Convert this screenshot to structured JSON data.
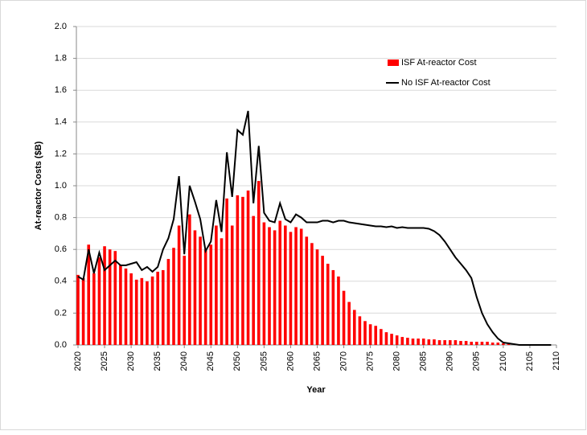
{
  "chart_data": {
    "type": "bar",
    "y_label": "At-reactor Costs ($B)",
    "x_label": "Year",
    "x": [
      2020,
      2021,
      2022,
      2023,
      2024,
      2025,
      2026,
      2027,
      2028,
      2029,
      2030,
      2031,
      2032,
      2033,
      2034,
      2035,
      2036,
      2037,
      2038,
      2039,
      2040,
      2041,
      2042,
      2043,
      2044,
      2045,
      2046,
      2047,
      2048,
      2049,
      2050,
      2051,
      2052,
      2053,
      2054,
      2055,
      2056,
      2057,
      2058,
      2059,
      2060,
      2061,
      2062,
      2063,
      2064,
      2065,
      2066,
      2067,
      2068,
      2069,
      2070,
      2071,
      2072,
      2073,
      2074,
      2075,
      2076,
      2077,
      2078,
      2079,
      2080,
      2081,
      2082,
      2083,
      2084,
      2085,
      2086,
      2087,
      2088,
      2089,
      2090,
      2091,
      2092,
      2093,
      2094,
      2095,
      2096,
      2097,
      2098,
      2099,
      2100,
      2101,
      2102,
      2103,
      2104,
      2105,
      2106,
      2107,
      2108,
      2109
    ],
    "series": [
      {
        "name": "ISF At-reactor Cost",
        "type": "bar",
        "color": "#ff0000",
        "values": [
          0.44,
          0.42,
          0.63,
          0.45,
          0.55,
          0.62,
          0.6,
          0.59,
          0.5,
          0.48,
          0.45,
          0.41,
          0.42,
          0.4,
          0.43,
          0.46,
          0.47,
          0.54,
          0.61,
          0.75,
          0.56,
          0.82,
          0.72,
          0.68,
          0.6,
          0.63,
          0.75,
          0.67,
          0.92,
          0.75,
          0.94,
          0.93,
          0.97,
          0.81,
          1.03,
          0.77,
          0.74,
          0.72,
          0.78,
          0.75,
          0.71,
          0.74,
          0.73,
          0.68,
          0.64,
          0.6,
          0.56,
          0.51,
          0.47,
          0.43,
          0.34,
          0.27,
          0.22,
          0.18,
          0.15,
          0.13,
          0.12,
          0.1,
          0.08,
          0.07,
          0.06,
          0.05,
          0.045,
          0.04,
          0.04,
          0.04,
          0.035,
          0.035,
          0.03,
          0.03,
          0.03,
          0.03,
          0.025,
          0.025,
          0.02,
          0.02,
          0.02,
          0.02,
          0.015,
          0.015,
          0.01,
          0.005,
          0,
          0,
          0,
          0,
          0,
          0,
          0,
          0
        ]
      },
      {
        "name": "No ISF At-reactor Cost",
        "type": "line",
        "color": "#000000",
        "values": [
          0.43,
          0.41,
          0.6,
          0.45,
          0.58,
          0.47,
          0.5,
          0.53,
          0.5,
          0.5,
          0.51,
          0.52,
          0.47,
          0.49,
          0.46,
          0.49,
          0.6,
          0.67,
          0.79,
          1.06,
          0.57,
          1.0,
          0.9,
          0.79,
          0.59,
          0.65,
          0.91,
          0.71,
          1.21,
          0.93,
          1.35,
          1.32,
          1.47,
          0.89,
          1.25,
          0.83,
          0.78,
          0.77,
          0.89,
          0.79,
          0.77,
          0.82,
          0.8,
          0.77,
          0.77,
          0.77,
          0.78,
          0.78,
          0.77,
          0.78,
          0.78,
          0.77,
          0.765,
          0.76,
          0.755,
          0.75,
          0.745,
          0.745,
          0.74,
          0.745,
          0.735,
          0.74,
          0.735,
          0.735,
          0.735,
          0.735,
          0.73,
          0.715,
          0.69,
          0.65,
          0.6,
          0.55,
          0.51,
          0.47,
          0.42,
          0.3,
          0.2,
          0.13,
          0.08,
          0.04,
          0.015,
          0.01,
          0.005,
          0,
          0,
          0,
          0,
          0,
          0,
          0
        ]
      }
    ],
    "xlim": [
      2020,
      2110
    ],
    "xticks": [
      2020,
      2025,
      2030,
      2035,
      2040,
      2045,
      2050,
      2055,
      2060,
      2065,
      2070,
      2075,
      2080,
      2085,
      2090,
      2095,
      2100,
      2105,
      2110
    ],
    "ylim": [
      0,
      2
    ],
    "yticks": [
      {
        "value": 0,
        "label": "0.0"
      },
      {
        "value": 0.2,
        "label": "0.2"
      },
      {
        "value": 0.4,
        "label": "0.4"
      },
      {
        "value": 0.6,
        "label": "0.6"
      },
      {
        "value": 0.8,
        "label": "0.8"
      },
      {
        "value": 1,
        "label": "1.0"
      },
      {
        "value": 1.2,
        "label": "1.2"
      },
      {
        "value": 1.4,
        "label": "1.4"
      },
      {
        "value": 1.6,
        "label": "1.6"
      },
      {
        "value": 1.8,
        "label": "1.8"
      },
      {
        "value": 2,
        "label": "2.0"
      }
    ],
    "grid": true,
    "legend": "top-right"
  }
}
